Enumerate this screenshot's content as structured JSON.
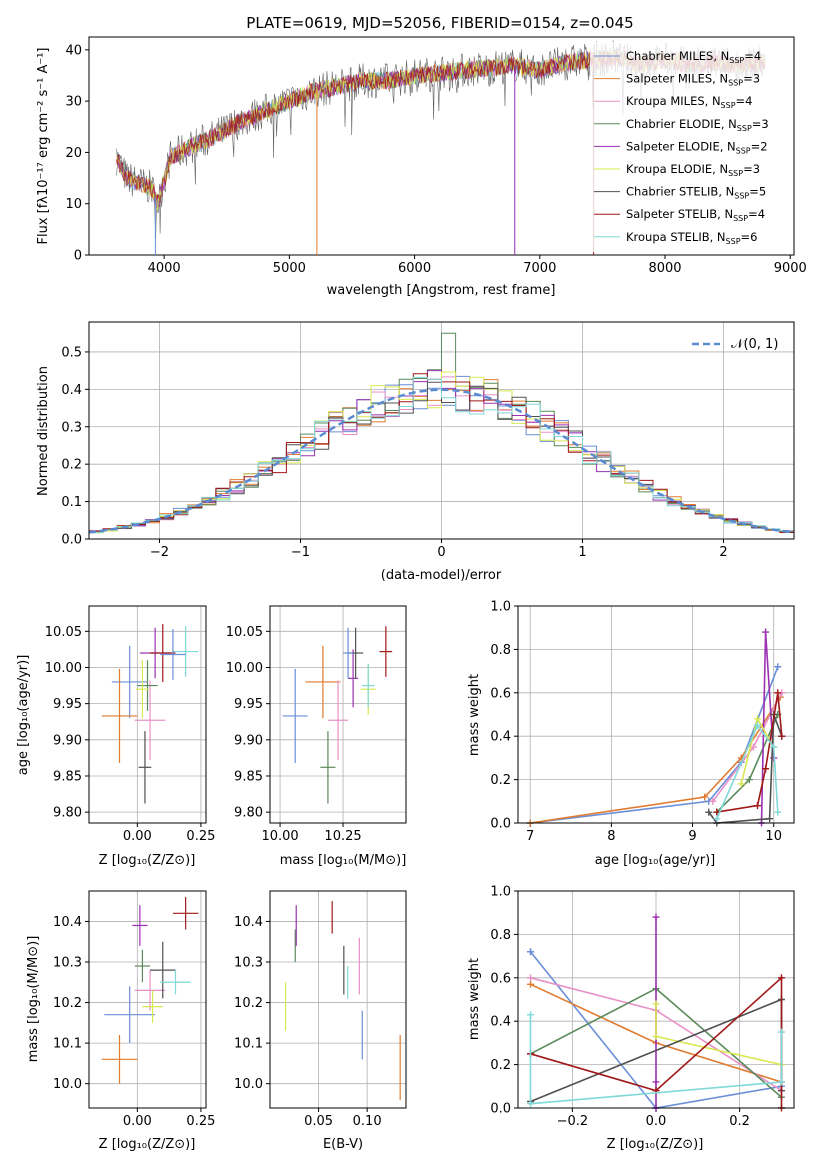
{
  "colors": [
    "#6a8ed8",
    "#e07b30",
    "#e890c8",
    "#5a8a5a",
    "#9b30b0",
    "#d8e850",
    "#505050",
    "#a01818",
    "#80d8d8"
  ],
  "chart_data": [
    {
      "id": "spectrum",
      "type": "line",
      "title": "PLATE=0619, MJD=52056, FIBERID=0154, z=0.045",
      "xlabel": "wavelength [Angstrom, rest frame]",
      "ylabel": "Flux [fλ10⁻¹⁷ erg cm⁻² s⁻¹ A⁻¹]",
      "xlim": [
        3400,
        9030
      ],
      "ylim": [
        0,
        42.5
      ],
      "xticks": [
        4000,
        5000,
        6000,
        7000,
        8000,
        9000
      ],
      "yticks": [
        0,
        10,
        20,
        30,
        40
      ],
      "continuum": [
        [
          3620,
          19
        ],
        [
          3700,
          15
        ],
        [
          3800,
          14
        ],
        [
          3900,
          13
        ],
        [
          3950,
          10
        ],
        [
          4050,
          19
        ],
        [
          4200,
          21
        ],
        [
          4400,
          23
        ],
        [
          4600,
          26
        ],
        [
          4800,
          28
        ],
        [
          5000,
          30
        ],
        [
          5200,
          32
        ],
        [
          5400,
          33
        ],
        [
          5600,
          34
        ],
        [
          5800,
          34
        ],
        [
          6000,
          35
        ],
        [
          6200,
          35.5
        ],
        [
          6400,
          36
        ],
        [
          6600,
          36.5
        ],
        [
          6800,
          37
        ],
        [
          7000,
          36
        ],
        [
          7200,
          37.5
        ],
        [
          7400,
          38
        ],
        [
          7600,
          38.5
        ],
        [
          7800,
          37
        ],
        [
          8000,
          38
        ],
        [
          8200,
          37
        ],
        [
          8400,
          37.5
        ],
        [
          8600,
          37
        ],
        [
          8800,
          37.5
        ]
      ],
      "series": [
        {
          "name": "Chabrier MILES",
          "nssp": "4"
        },
        {
          "name": "Salpeter MILES",
          "nssp": "3"
        },
        {
          "name": "Kroupa MILES",
          "nssp": "4"
        },
        {
          "name": "Chabrier ELODIE",
          "nssp": "3"
        },
        {
          "name": "Salpeter ELODIE",
          "nssp": "2"
        },
        {
          "name": "Kroupa ELODIE",
          "nssp": "3"
        },
        {
          "name": "Chabrier STELIB",
          "nssp": "5"
        },
        {
          "name": "Salpeter STELIB",
          "nssp": "4"
        },
        {
          "name": "Kroupa STELIB",
          "nssp": "6"
        }
      ]
    },
    {
      "id": "residuals",
      "type": "line",
      "xlabel": "(data-model)/error",
      "ylabel": "Normed distribution",
      "xlim": [
        -2.5,
        2.5
      ],
      "ylim": [
        0,
        0.58
      ],
      "xticks": [
        -2,
        -1,
        0,
        1,
        2
      ],
      "yticks": [
        0.0,
        0.1,
        0.2,
        0.3,
        0.4,
        0.5
      ],
      "legend": "𝒩(0, 1)",
      "legend_position": "top-right",
      "bin_width": 0.1
    },
    {
      "id": "age-z",
      "type": "scatter",
      "xlabel": "Z [log₁₀(Z/Z⊙)]",
      "ylabel": "age  [log₁₀(age/yr)]",
      "xlim": [
        -0.19,
        0.27
      ],
      "ylim": [
        9.785,
        10.085
      ],
      "xticks": [
        0.0,
        0.25
      ],
      "yticks": [
        9.8,
        9.85,
        9.9,
        9.95,
        10.0,
        10.05
      ],
      "xtick_labels": [
        "0.00",
        "0.25"
      ],
      "ytick_labels": [
        "9.80",
        "9.85",
        "9.90",
        "9.95",
        "10.00",
        "10.05"
      ],
      "points": [
        {
          "x": -0.03,
          "y": 9.98,
          "xerr": 0.07,
          "yerr": 0.05
        },
        {
          "x": -0.07,
          "y": 9.933,
          "xerr": 0.07,
          "yerr": 0.065
        },
        {
          "x": 0.05,
          "y": 9.927,
          "xerr": 0.06,
          "yerr": 0.055
        },
        {
          "x": 0.04,
          "y": 9.975,
          "xerr": 0.04,
          "yerr": 0.035
        },
        {
          "x": 0.07,
          "y": 10.02,
          "xerr": 0.06,
          "yerr": 0.035
        },
        {
          "x": 0.02,
          "y": 9.97,
          "xerr": 0.025,
          "yerr": 0.04
        },
        {
          "x": 0.03,
          "y": 9.862,
          "xerr": 0.025,
          "yerr": 0.05
        },
        {
          "x": 0.1,
          "y": 10.02,
          "xerr": 0.05,
          "yerr": 0.04
        },
        {
          "x": 0.19,
          "y": 10.022,
          "xerr": 0.05,
          "yerr": 0.035
        },
        {
          "x": 0.14,
          "y": 10.018,
          "xerr": 0.05,
          "yerr": 0.035
        }
      ]
    },
    {
      "id": "age-mass",
      "type": "scatter",
      "xlabel": "mass [log₁₀(M/M⊙)]",
      "xlim": [
        9.96,
        10.5
      ],
      "ylim": [
        9.785,
        10.085
      ],
      "xticks": [
        10.0,
        10.25
      ],
      "yticks": [
        9.8,
        9.85,
        9.9,
        9.95,
        10.0,
        10.05
      ],
      "xtick_labels": [
        "10.00",
        "10.25"
      ],
      "ytick_labels": [
        "9.80",
        "9.85",
        "9.90",
        "9.95",
        "10.00",
        "10.05"
      ],
      "points": [
        {
          "x": 10.06,
          "y": 9.933,
          "xerr": 0.05,
          "yerr": 0.065
        },
        {
          "x": 10.17,
          "y": 9.98,
          "xerr": 0.07,
          "yerr": 0.05
        },
        {
          "x": 10.23,
          "y": 9.927,
          "xerr": 0.04,
          "yerr": 0.055
        },
        {
          "x": 10.19,
          "y": 9.862,
          "xerr": 0.03,
          "yerr": 0.05
        },
        {
          "x": 10.29,
          "y": 9.985,
          "xerr": 0.02,
          "yerr": 0.04
        },
        {
          "x": 10.35,
          "y": 9.97,
          "xerr": 0.03,
          "yerr": 0.035
        },
        {
          "x": 10.3,
          "y": 10.02,
          "xerr": 0.03,
          "yerr": 0.035
        },
        {
          "x": 10.42,
          "y": 10.022,
          "xerr": 0.025,
          "yerr": 0.035
        },
        {
          "x": 10.35,
          "y": 9.975,
          "xerr": 0.025,
          "yerr": 0.03
        },
        {
          "x": 10.27,
          "y": 10.02,
          "xerr": 0.02,
          "yerr": 0.035
        }
      ]
    },
    {
      "id": "weight-age",
      "type": "line",
      "xlabel": "age  [log₁₀(age/yr)]",
      "ylabel": "mass weight",
      "xlim": [
        6.85,
        10.25
      ],
      "ylim": [
        0,
        1.0
      ],
      "xticks": [
        7,
        8,
        9,
        10
      ],
      "yticks": [
        0.0,
        0.2,
        0.4,
        0.6,
        0.8,
        1.0
      ],
      "xtick_labels": [
        "7",
        "8",
        "9",
        "10"
      ],
      "ytick_labels": [
        "0.0",
        "0.2",
        "0.4",
        "0.6",
        "0.8",
        "1.0"
      ],
      "series": [
        {
          "x": [
            7.0,
            9.2,
            9.6,
            10.05
          ],
          "y": [
            0.0,
            0.1,
            0.28,
            0.72
          ]
        },
        {
          "x": [
            7.0,
            9.15,
            9.6,
            10.08
          ],
          "y": [
            0.0,
            0.12,
            0.3,
            0.58
          ]
        },
        {
          "x": [
            9.25,
            9.75,
            10.1
          ],
          "y": [
            0.1,
            0.35,
            0.6
          ]
        },
        {
          "x": [
            9.3,
            9.7,
            10.05
          ],
          "y": [
            0.05,
            0.2,
            0.5
          ]
        },
        {
          "x": [
            9.85,
            9.9,
            10.0
          ],
          "y": [
            0.0,
            0.88,
            0.3
          ]
        },
        {
          "x": [
            9.6,
            9.8,
            10.0
          ],
          "y": [
            0.18,
            0.48,
            0.35
          ]
        },
        {
          "x": [
            9.2,
            9.3,
            9.95,
            10.0,
            10.1
          ],
          "y": [
            0.05,
            0.0,
            0.02,
            0.5,
            0.4
          ]
        },
        {
          "x": [
            9.3,
            9.8,
            9.9,
            10.05,
            10.1
          ],
          "y": [
            0.05,
            0.08,
            0.25,
            0.6,
            0.4
          ]
        },
        {
          "x": [
            9.3,
            9.8,
            10.0,
            10.05
          ],
          "y": [
            0.02,
            0.45,
            0.35,
            0.05
          ]
        }
      ]
    },
    {
      "id": "mass-z",
      "type": "scatter",
      "xlabel": "Z [log₁₀(Z/Z⊙)]",
      "ylabel": "mass [log₁₀(M/M⊙)]",
      "xlim": [
        -0.19,
        0.27
      ],
      "ylim": [
        9.94,
        10.475
      ],
      "xticks": [
        0.0,
        0.25
      ],
      "yticks": [
        10.0,
        10.1,
        10.2,
        10.3,
        10.4
      ],
      "xtick_labels": [
        "0.00",
        "0.25"
      ],
      "ytick_labels": [
        "10.0",
        "10.1",
        "10.2",
        "10.3",
        "10.4"
      ],
      "points": [
        {
          "x": -0.03,
          "y": 10.17,
          "xerr": 0.1,
          "yerr": 0.07
        },
        {
          "x": -0.07,
          "y": 10.06,
          "xerr": 0.07,
          "yerr": 0.06
        },
        {
          "x": 0.05,
          "y": 10.23,
          "xerr": 0.06,
          "yerr": 0.05
        },
        {
          "x": 0.02,
          "y": 10.29,
          "xerr": 0.03,
          "yerr": 0.04
        },
        {
          "x": 0.01,
          "y": 10.39,
          "xerr": 0.03,
          "yerr": 0.05
        },
        {
          "x": 0.06,
          "y": 10.19,
          "xerr": 0.04,
          "yerr": 0.04
        },
        {
          "x": 0.1,
          "y": 10.28,
          "xerr": 0.05,
          "yerr": 0.07
        },
        {
          "x": 0.19,
          "y": 10.42,
          "xerr": 0.05,
          "yerr": 0.04
        },
        {
          "x": 0.15,
          "y": 10.25,
          "xerr": 0.06,
          "yerr": 0.03
        }
      ]
    },
    {
      "id": "mass-ebv",
      "type": "scatter",
      "xlabel": "E(B-V)",
      "xlim": [
        0.0,
        0.14
      ],
      "ylim": [
        9.94,
        10.475
      ],
      "xticks": [
        0.05,
        0.1
      ],
      "yticks": [
        10.0,
        10.1,
        10.2,
        10.3,
        10.4
      ],
      "xtick_labels": [
        "0.05",
        "0.10"
      ],
      "ytick_labels": [
        "10.0",
        "10.1",
        "10.2",
        "10.3",
        "10.4"
      ],
      "points": [
        {
          "x": 0.095,
          "y": 10.12,
          "yerr": 0.06
        },
        {
          "x": 0.134,
          "y": 10.04,
          "yerr": 0.08
        },
        {
          "x": 0.092,
          "y": 10.29,
          "yerr": 0.07
        },
        {
          "x": 0.026,
          "y": 10.34,
          "yerr": 0.04
        },
        {
          "x": 0.027,
          "y": 10.39,
          "yerr": 0.05
        },
        {
          "x": 0.016,
          "y": 10.19,
          "yerr": 0.06
        },
        {
          "x": 0.076,
          "y": 10.28,
          "yerr": 0.06
        },
        {
          "x": 0.064,
          "y": 10.41,
          "yerr": 0.04
        },
        {
          "x": 0.08,
          "y": 10.25,
          "yerr": 0.04
        }
      ]
    },
    {
      "id": "weight-z",
      "type": "line",
      "xlabel": "Z [log₁₀(Z/Z⊙)]",
      "ylabel": "mass weight",
      "xlim": [
        -0.33,
        0.33
      ],
      "ylim": [
        0,
        1.0
      ],
      "xticks": [
        -0.2,
        0.0,
        0.2
      ],
      "yticks": [
        0.0,
        0.2,
        0.4,
        0.6,
        0.8,
        1.0
      ],
      "xtick_labels": [
        "−0.2",
        "0.0",
        "0.2"
      ],
      "ytick_labels": [
        "0.0",
        "0.2",
        "0.4",
        "0.6",
        "0.8",
        "1.0"
      ],
      "series": [
        {
          "x": [
            -0.3,
            -0.3,
            0.0,
            0.3
          ],
          "y": [
            0.72,
            0.72,
            0.0,
            0.1
          ]
        },
        {
          "x": [
            -0.3,
            0.0,
            0.3
          ],
          "y": [
            0.57,
            0.3,
            0.12
          ]
        },
        {
          "x": [
            -0.3,
            0.0,
            0.3
          ],
          "y": [
            0.6,
            0.45,
            0.08
          ]
        },
        {
          "x": [
            -0.3,
            0.0,
            0.3
          ],
          "y": [
            0.25,
            0.55,
            0.05
          ]
        },
        {
          "x": [
            0.0,
            0.0,
            0.0
          ],
          "y": [
            0.88,
            0.0,
            0.12
          ]
        },
        {
          "x": [
            0.0,
            0.0,
            0.3
          ],
          "y": [
            0.48,
            0.33,
            0.2
          ]
        },
        {
          "x": [
            -0.3,
            0.3,
            0.3
          ],
          "y": [
            0.03,
            0.5,
            0.08
          ]
        },
        {
          "x": [
            -0.3,
            0.0,
            0.3,
            0.3
          ],
          "y": [
            0.25,
            0.08,
            0.6,
            0.0
          ]
        },
        {
          "x": [
            -0.3,
            -0.3,
            0.3,
            0.3
          ],
          "y": [
            0.43,
            0.02,
            0.12,
            0.35
          ]
        }
      ]
    }
  ]
}
